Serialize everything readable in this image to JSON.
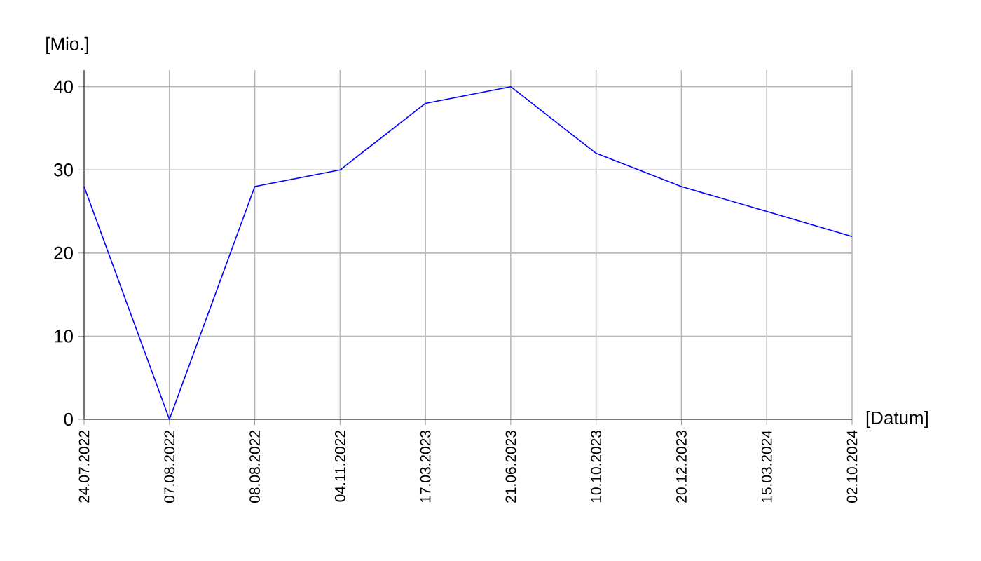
{
  "chart_data": {
    "type": "line",
    "xlabel": "[Datum]",
    "ylabel": "[Mio.]",
    "categories": [
      "24.07.2022",
      "07.08.2022",
      "08.08.2022",
      "04.11.2022",
      "17.03.2023",
      "21.06.2023",
      "10.10.2023",
      "20.12.2023",
      "15.03.2024",
      "02.10.2024"
    ],
    "values": [
      28,
      0,
      28,
      30,
      38,
      40,
      32,
      28,
      25,
      22
    ],
    "color": "#0000ff",
    "ylim": [
      0,
      42
    ],
    "yticks": [
      0,
      10,
      20,
      30,
      40
    ],
    "grid": true
  }
}
